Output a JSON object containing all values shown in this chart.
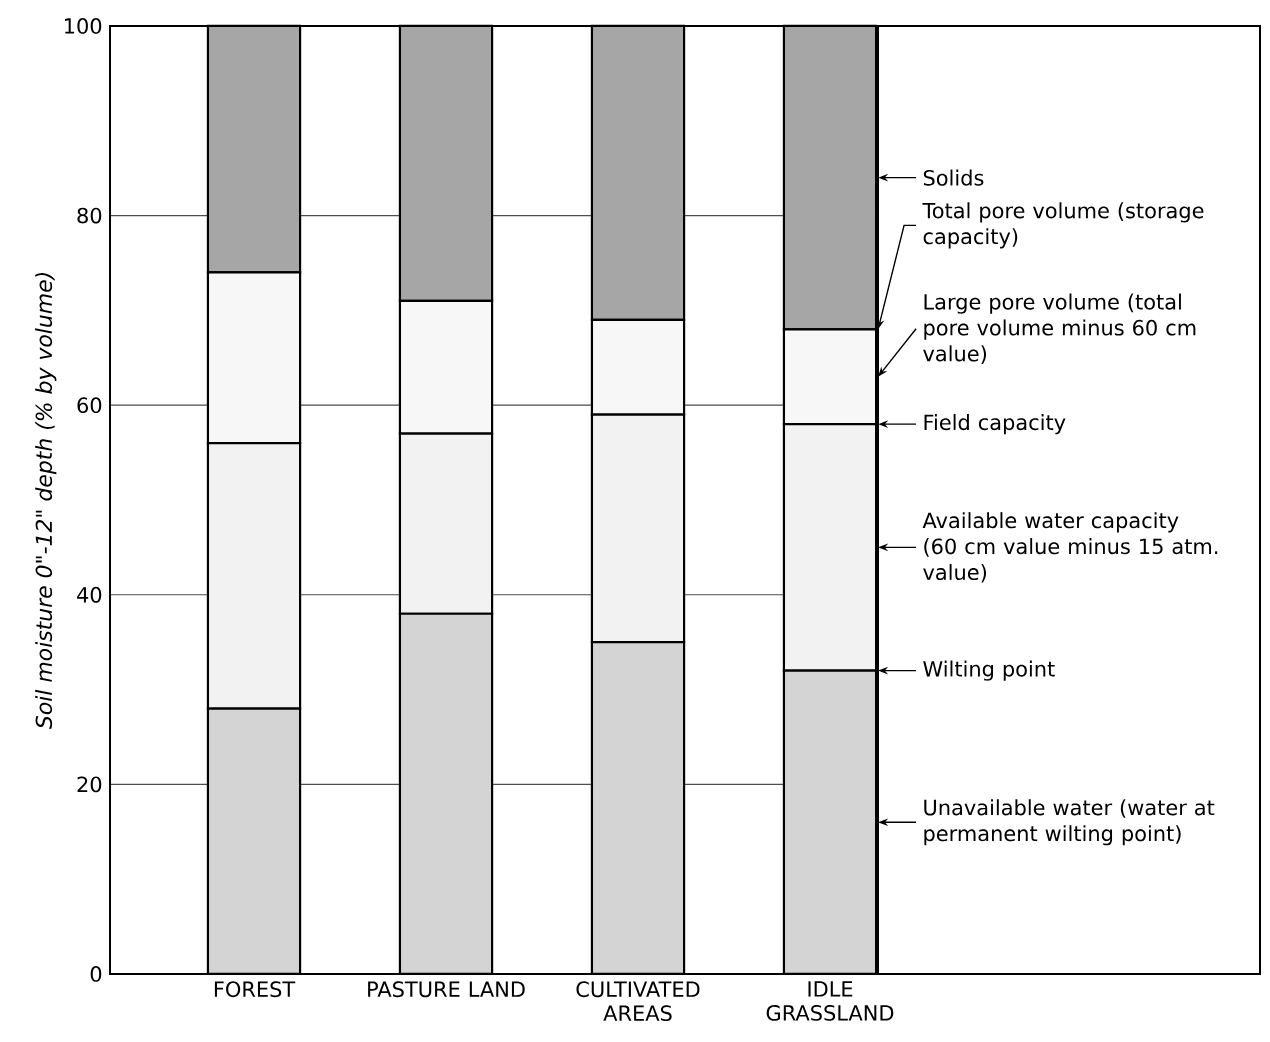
{
  "chart_data": {
    "type": "bar",
    "stacked": true,
    "ylabel": "Soil moisture 0\"-12\" depth (% by volume)",
    "categories": [
      "FOREST",
      "PASTURE LAND",
      "CULTIVATED AREAS",
      "IDLE GRASSLAND"
    ],
    "series": [
      {
        "name": "Unavailable water (water at permanent wilting point)",
        "color": "#d4d4d4",
        "values": [
          28,
          38,
          35,
          32
        ]
      },
      {
        "name": "Available water capacity (60 cm value minus 15 atm. value)",
        "color": "#f2f2f2",
        "values": [
          28,
          19,
          24,
          26
        ]
      },
      {
        "name": "Large pore volume (total pore volume minus 60 cm value)",
        "color": "#f7f7f7",
        "values": [
          18,
          14,
          10,
          10
        ]
      },
      {
        "name": "Solids",
        "color": "#a6a6a6",
        "values": [
          26,
          29,
          31,
          32
        ]
      }
    ],
    "annotations": [
      "Total pore volume (storage capacity)",
      "Field capacity",
      "Wilting point"
    ],
    "ylim": [
      0,
      100
    ],
    "yticks": [
      0,
      20,
      40,
      60,
      80,
      100
    ],
    "grid": "y",
    "legend": "right"
  }
}
